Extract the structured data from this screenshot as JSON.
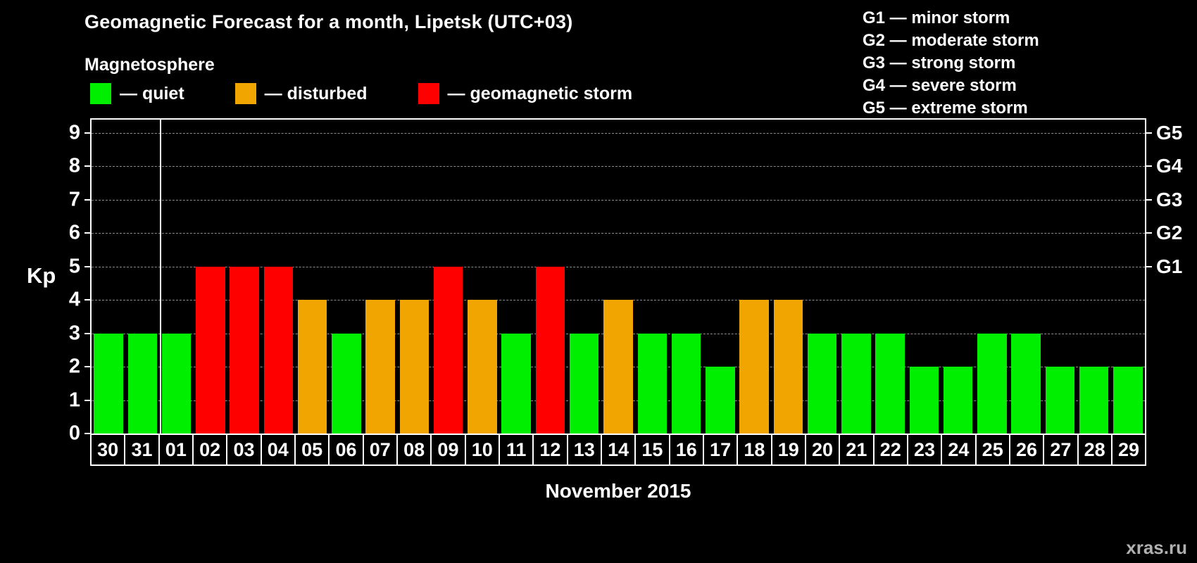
{
  "title": "Geomagnetic Forecast for a month, Lipetsk (UTC+03)",
  "legend": {
    "heading": "Magnetosphere",
    "items": [
      {
        "label": "— quiet",
        "status": "quiet",
        "color": "#00ee00"
      },
      {
        "label": "— disturbed",
        "status": "disturbed",
        "color": "#f0a500"
      },
      {
        "label": "— geomagnetic storm",
        "status": "storm",
        "color": "#ff0000"
      }
    ]
  },
  "storm_scale": [
    "G1 — minor storm",
    "G2 — moderate storm",
    "G3 — strong storm",
    "G4 — severe storm",
    "G5 — extreme storm"
  ],
  "chart_data": {
    "type": "bar",
    "title": "Geomagnetic Forecast for a month, Lipetsk (UTC+03)",
    "xlabel": "November 2015",
    "ylabel": "Kp",
    "ylim": [
      0,
      9.4
    ],
    "yticks": [
      0,
      1,
      2,
      3,
      4,
      5,
      6,
      7,
      8,
      9
    ],
    "grid": "dashed horizontal",
    "right_axis_labels": [
      {
        "label": "G1",
        "kp": 5
      },
      {
        "label": "G2",
        "kp": 6
      },
      {
        "label": "G3",
        "kp": 7
      },
      {
        "label": "G4",
        "kp": 8
      },
      {
        "label": "G5",
        "kp": 9
      }
    ],
    "month_separator_after_index": 1,
    "categories": [
      "30",
      "31",
      "01",
      "02",
      "03",
      "04",
      "05",
      "06",
      "07",
      "08",
      "09",
      "10",
      "11",
      "12",
      "13",
      "14",
      "15",
      "16",
      "17",
      "18",
      "19",
      "20",
      "21",
      "22",
      "23",
      "24",
      "25",
      "26",
      "27",
      "28",
      "29"
    ],
    "values": [
      3,
      3,
      3,
      5,
      5,
      5,
      4,
      3,
      4,
      4,
      5,
      4,
      3,
      5,
      3,
      4,
      3,
      3,
      2,
      4,
      4,
      3,
      3,
      3,
      2,
      2,
      3,
      3,
      2,
      2,
      2
    ],
    "statuses": [
      "quiet",
      "quiet",
      "quiet",
      "storm",
      "storm",
      "storm",
      "disturbed",
      "quiet",
      "disturbed",
      "disturbed",
      "storm",
      "disturbed",
      "quiet",
      "storm",
      "quiet",
      "disturbed",
      "quiet",
      "quiet",
      "quiet",
      "disturbed",
      "disturbed",
      "quiet",
      "quiet",
      "quiet",
      "quiet",
      "quiet",
      "quiet",
      "quiet",
      "quiet",
      "quiet",
      "quiet"
    ]
  },
  "watermark": "xras.ru"
}
